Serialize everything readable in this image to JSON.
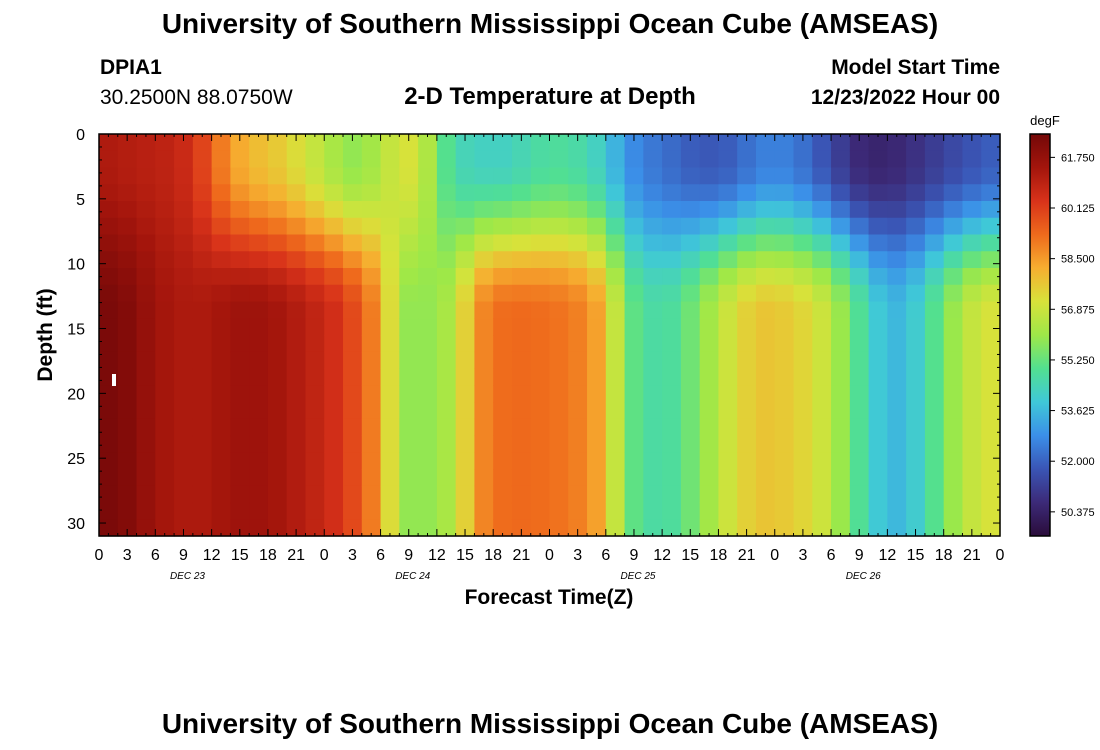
{
  "header": {
    "title": "University of Southern Mississippi Ocean Cube (AMSEAS)",
    "station_id": "DPIA1",
    "station_coords": "30.2500N  88.0750W",
    "plot_title": "2-D Temperature at Depth",
    "model_start_label": "Model Start Time",
    "model_start_value": "12/23/2022 Hour 00"
  },
  "footer": {
    "title": "University of Southern Mississippi Ocean Cube (AMSEAS)"
  },
  "chart_data": {
    "type": "heatmap",
    "title": "2-D Temperature at Depth",
    "xlabel": "Forecast Time(Z)",
    "ylabel": "Depth (ft)",
    "x_hours": [
      0,
      3,
      6,
      9,
      12,
      15,
      18,
      21,
      24,
      27,
      30,
      33,
      36,
      39,
      42,
      45,
      48,
      51,
      54,
      57,
      60,
      63,
      66,
      69,
      72,
      75,
      78,
      81,
      84,
      87,
      90,
      93,
      96
    ],
    "x_tick_labels": [
      "0",
      "3",
      "6",
      "9",
      "12",
      "15",
      "18",
      "21",
      "0",
      "3",
      "6",
      "9",
      "12",
      "15",
      "18",
      "21",
      "0",
      "3",
      "6",
      "9",
      "12",
      "15",
      "18",
      "21",
      "0",
      "3",
      "6",
      "9",
      "12",
      "15",
      "18",
      "21",
      "0"
    ],
    "day_labels": [
      {
        "label": "DEC 23",
        "hour": 9
      },
      {
        "label": "DEC 24",
        "hour": 33
      },
      {
        "label": "DEC 25",
        "hour": 57
      },
      {
        "label": "DEC 26",
        "hour": 81
      }
    ],
    "xlim": [
      0,
      96
    ],
    "y_ticks": [
      0,
      5,
      10,
      15,
      20,
      25,
      30
    ],
    "ylim": [
      0,
      31
    ],
    "y_inverted": true,
    "colorbar": {
      "units": "degF",
      "min": 49.6,
      "max": 62.5,
      "tick_values": [
        61.75,
        60.125,
        58.5,
        56.875,
        55.25,
        53.625,
        52.0,
        50.375
      ],
      "tick_labels": [
        "61.750",
        "60.125",
        "58.500",
        "56.875",
        "55.250",
        "53.625",
        "52.000",
        "50.375"
      ],
      "colors": [
        "#2a0c3a",
        "#3c2a78",
        "#3a55b5",
        "#3b8fe8",
        "#3fc8d8",
        "#52e090",
        "#9ee848",
        "#d8e23a",
        "#f6ae30",
        "#ef6a1c",
        "#d8321a",
        "#a3150c",
        "#740808"
      ]
    },
    "temperature_field": {
      "description_of_columns": "temperature (degF) at depth = surface (0 ft) and bottom (31 ft) for each forecast hour",
      "hours": [
        0,
        2,
        4,
        6,
        8,
        10,
        12,
        14,
        16,
        18,
        20,
        22,
        24,
        26,
        28,
        30,
        32,
        34,
        36,
        38,
        40,
        42,
        44,
        46,
        48,
        50,
        52,
        54,
        56,
        58,
        60,
        62,
        64,
        66,
        68,
        70,
        72,
        74,
        76,
        78,
        80,
        82,
        84,
        86,
        88,
        90,
        92,
        94,
        96
      ],
      "surface": [
        61.2,
        61.2,
        61.0,
        61.0,
        60.8,
        60.5,
        59.5,
        58.5,
        58.0,
        57.8,
        57.5,
        57.0,
        56.5,
        56.0,
        55.8,
        56.5,
        57.0,
        57.2,
        55.5,
        54.5,
        54.3,
        54.2,
        54.3,
        54.6,
        54.8,
        54.8,
        54.5,
        54.0,
        53.0,
        52.5,
        52.3,
        52.0,
        51.8,
        51.8,
        52.0,
        52.5,
        52.6,
        52.5,
        52.0,
        51.5,
        50.8,
        50.5,
        50.5,
        50.7,
        51.0,
        51.3,
        51.6,
        51.8,
        52.0
      ],
      "bottom": [
        62.4,
        62.3,
        62.0,
        61.5,
        61.3,
        61.2,
        61.3,
        61.5,
        61.6,
        61.5,
        61.3,
        61.0,
        60.7,
        60.3,
        59.5,
        58.5,
        56.0,
        55.8,
        56.0,
        56.5,
        58.5,
        59.2,
        59.3,
        59.3,
        59.2,
        59.1,
        58.8,
        58.0,
        55.5,
        54.8,
        54.6,
        55.0,
        55.8,
        56.5,
        57.3,
        57.7,
        57.8,
        57.5,
        57.3,
        56.5,
        55.5,
        54.3,
        53.6,
        53.6,
        54.5,
        55.5,
        56.5,
        57.0,
        57.2
      ]
    }
  }
}
